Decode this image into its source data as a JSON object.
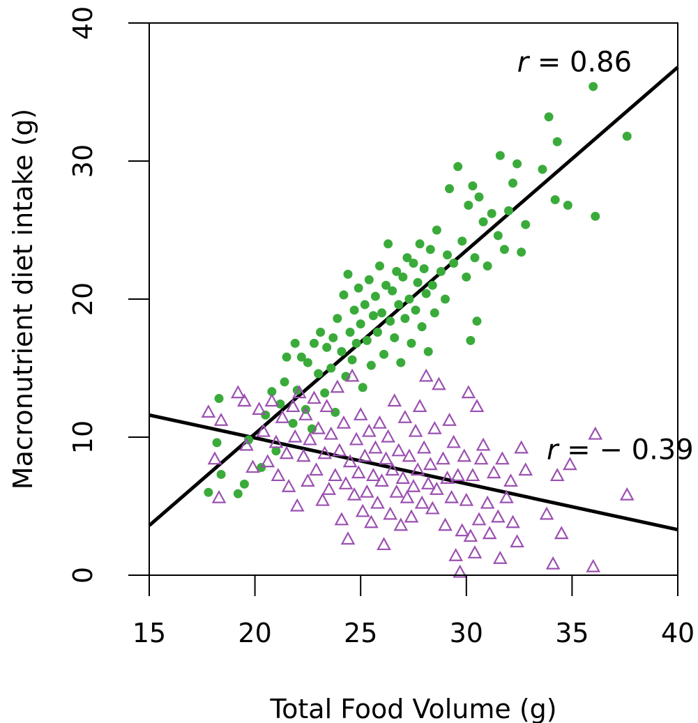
{
  "chart_data": {
    "type": "scatter",
    "title": "",
    "xlabel": "Total Food Volume (g)",
    "ylabel": "Macronutrient diet intake (g)",
    "xlim": [
      15,
      40
    ],
    "ylim": [
      0,
      40
    ],
    "xticks": [
      "15",
      "20",
      "25",
      "30",
      "35",
      "40"
    ],
    "yticks": [
      "0",
      "10",
      "20",
      "30",
      "40"
    ],
    "grid": false,
    "legend": "none",
    "colors": {
      "green": "#3aab3a",
      "purple": "#9b50b0",
      "line": "#000000"
    },
    "series": [
      {
        "marker": "filled-circle",
        "color": "#3aab3a",
        "points": [
          [
            17.8,
            6.0
          ],
          [
            18.2,
            9.6
          ],
          [
            18.4,
            7.3
          ],
          [
            18.3,
            12.8
          ],
          [
            19.2,
            5.9
          ],
          [
            19.5,
            6.6
          ],
          [
            19.7,
            9.8
          ],
          [
            20.3,
            7.8
          ],
          [
            20.5,
            11.6
          ],
          [
            20.8,
            13.3
          ],
          [
            21.0,
            9.0
          ],
          [
            21.2,
            12.4
          ],
          [
            21.4,
            14.0
          ],
          [
            21.5,
            15.8
          ],
          [
            21.8,
            11.0
          ],
          [
            21.9,
            16.8
          ],
          [
            22.0,
            13.4
          ],
          [
            22.2,
            15.8
          ],
          [
            22.4,
            12.0
          ],
          [
            22.5,
            15.4
          ],
          [
            22.7,
            10.6
          ],
          [
            22.8,
            16.8
          ],
          [
            23.0,
            14.6
          ],
          [
            23.1,
            17.6
          ],
          [
            23.3,
            13.2
          ],
          [
            23.4,
            16.5
          ],
          [
            23.6,
            15.0
          ],
          [
            23.7,
            17.2
          ],
          [
            23.8,
            11.8
          ],
          [
            23.9,
            18.6
          ],
          [
            24.1,
            16.2
          ],
          [
            24.2,
            20.3
          ],
          [
            24.3,
            14.4
          ],
          [
            24.4,
            21.8
          ],
          [
            24.5,
            17.6
          ],
          [
            24.6,
            15.6
          ],
          [
            24.7,
            19.2
          ],
          [
            24.8,
            16.8
          ],
          [
            24.9,
            20.8
          ],
          [
            25.0,
            18.2
          ],
          [
            25.1,
            13.6
          ],
          [
            25.2,
            19.6
          ],
          [
            25.3,
            17.0
          ],
          [
            25.4,
            21.4
          ],
          [
            25.5,
            15.2
          ],
          [
            25.6,
            18.8
          ],
          [
            25.7,
            20.2
          ],
          [
            25.8,
            17.6
          ],
          [
            25.9,
            22.4
          ],
          [
            26.0,
            19.0
          ],
          [
            26.1,
            16.0
          ],
          [
            26.2,
            21.0
          ],
          [
            26.3,
            24.0
          ],
          [
            26.4,
            18.4
          ],
          [
            26.5,
            20.6
          ],
          [
            26.6,
            17.2
          ],
          [
            26.7,
            22.0
          ],
          [
            26.8,
            19.6
          ],
          [
            26.9,
            15.4
          ],
          [
            27.0,
            21.6
          ],
          [
            27.1,
            18.6
          ],
          [
            27.2,
            23.0
          ],
          [
            27.3,
            20.0
          ],
          [
            27.4,
            16.8
          ],
          [
            27.5,
            22.6
          ],
          [
            27.6,
            19.2
          ],
          [
            27.7,
            21.2
          ],
          [
            27.8,
            24.0
          ],
          [
            27.9,
            18.0
          ],
          [
            28.0,
            22.2
          ],
          [
            28.1,
            20.4
          ],
          [
            28.2,
            16.2
          ],
          [
            28.3,
            23.6
          ],
          [
            28.4,
            21.0
          ],
          [
            28.5,
            19.0
          ],
          [
            28.6,
            25.0
          ],
          [
            28.8,
            22.0
          ],
          [
            29.0,
            20.0
          ],
          [
            29.1,
            23.2
          ],
          [
            29.2,
            28.0
          ],
          [
            29.4,
            22.6
          ],
          [
            29.6,
            29.6
          ],
          [
            29.8,
            24.2
          ],
          [
            30.0,
            21.6
          ],
          [
            30.1,
            26.8
          ],
          [
            30.2,
            17.0
          ],
          [
            30.3,
            28.2
          ],
          [
            30.4,
            23.0
          ],
          [
            30.5,
            18.4
          ],
          [
            30.6,
            27.4
          ],
          [
            30.8,
            25.6
          ],
          [
            31.0,
            22.4
          ],
          [
            31.2,
            26.2
          ],
          [
            31.5,
            24.6
          ],
          [
            31.6,
            30.4
          ],
          [
            31.8,
            23.6
          ],
          [
            32.0,
            26.4
          ],
          [
            32.2,
            28.4
          ],
          [
            32.4,
            29.8
          ],
          [
            32.6,
            23.4
          ],
          [
            32.8,
            25.4
          ],
          [
            33.6,
            29.4
          ],
          [
            33.9,
            33.2
          ],
          [
            34.2,
            27.2
          ],
          [
            34.3,
            31.4
          ],
          [
            34.8,
            26.8
          ],
          [
            36.0,
            35.4
          ],
          [
            36.1,
            26.0
          ],
          [
            37.6,
            31.8
          ]
        ]
      },
      {
        "marker": "open-triangle",
        "color": "#9b50b0",
        "points": [
          [
            17.8,
            11.8
          ],
          [
            18.1,
            8.4
          ],
          [
            18.3,
            5.6
          ],
          [
            18.4,
            11.2
          ],
          [
            19.2,
            13.2
          ],
          [
            19.5,
            12.6
          ],
          [
            19.6,
            9.4
          ],
          [
            19.9,
            7.8
          ],
          [
            20.2,
            12.0
          ],
          [
            20.4,
            10.4
          ],
          [
            20.6,
            8.2
          ],
          [
            20.8,
            12.6
          ],
          [
            21.0,
            9.6
          ],
          [
            21.1,
            7.2
          ],
          [
            21.3,
            11.4
          ],
          [
            21.5,
            8.8
          ],
          [
            21.6,
            6.4
          ],
          [
            21.8,
            12.2
          ],
          [
            21.9,
            10.0
          ],
          [
            22.0,
            5.0
          ],
          [
            22.1,
            13.2
          ],
          [
            22.3,
            8.6
          ],
          [
            22.4,
            11.6
          ],
          [
            22.5,
            6.8
          ],
          [
            22.6,
            9.8
          ],
          [
            22.8,
            12.8
          ],
          [
            22.9,
            7.6
          ],
          [
            23.0,
            10.6
          ],
          [
            23.2,
            5.4
          ],
          [
            23.3,
            8.8
          ],
          [
            23.4,
            12.2
          ],
          [
            23.5,
            6.2
          ],
          [
            23.6,
            10.2
          ],
          [
            23.8,
            7.2
          ],
          [
            23.9,
            13.6
          ],
          [
            24.0,
            9.0
          ],
          [
            24.1,
            4.0
          ],
          [
            24.2,
            11.0
          ],
          [
            24.3,
            6.6
          ],
          [
            24.4,
            2.6
          ],
          [
            24.5,
            8.2
          ],
          [
            24.6,
            14.4
          ],
          [
            24.7,
            5.8
          ],
          [
            24.8,
            9.8
          ],
          [
            24.9,
            7.4
          ],
          [
            25.0,
            11.6
          ],
          [
            25.1,
            4.6
          ],
          [
            25.2,
            8.6
          ],
          [
            25.3,
            6.0
          ],
          [
            25.4,
            10.4
          ],
          [
            25.5,
            3.8
          ],
          [
            25.6,
            7.2
          ],
          [
            25.7,
            9.2
          ],
          [
            25.8,
            5.2
          ],
          [
            25.9,
            11.0
          ],
          [
            26.0,
            6.8
          ],
          [
            26.1,
            2.2
          ],
          [
            26.2,
            8.4
          ],
          [
            26.3,
            10.0
          ],
          [
            26.4,
            4.4
          ],
          [
            26.5,
            7.6
          ],
          [
            26.6,
            12.6
          ],
          [
            26.7,
            6.0
          ],
          [
            26.8,
            9.0
          ],
          [
            26.9,
            3.6
          ],
          [
            27.0,
            7.0
          ],
          [
            27.1,
            11.4
          ],
          [
            27.2,
            5.6
          ],
          [
            27.3,
            8.6
          ],
          [
            27.4,
            4.2
          ],
          [
            27.5,
            6.4
          ],
          [
            27.6,
            10.4
          ],
          [
            27.7,
            7.6
          ],
          [
            27.8,
            12.2
          ],
          [
            27.9,
            5.2
          ],
          [
            28.0,
            9.2
          ],
          [
            28.1,
            14.4
          ],
          [
            28.2,
            6.6
          ],
          [
            28.3,
            8.0
          ],
          [
            28.4,
            4.8
          ],
          [
            28.5,
            10.6
          ],
          [
            28.6,
            6.2
          ],
          [
            28.7,
            13.8
          ],
          [
            28.9,
            8.4
          ],
          [
            29.0,
            3.6
          ],
          [
            29.1,
            7.0
          ],
          [
            29.2,
            11.2
          ],
          [
            29.3,
            5.6
          ],
          [
            29.4,
            9.6
          ],
          [
            29.5,
            1.4
          ],
          [
            29.6,
            7.2
          ],
          [
            29.7,
            0.2
          ],
          [
            29.8,
            3.2
          ],
          [
            29.9,
            8.6
          ],
          [
            30.0,
            5.4
          ],
          [
            30.1,
            13.2
          ],
          [
            30.2,
            2.8
          ],
          [
            30.3,
            7.2
          ],
          [
            30.4,
            1.6
          ],
          [
            30.5,
            12.2
          ],
          [
            30.6,
            4.0
          ],
          [
            30.7,
            8.4
          ],
          [
            30.8,
            9.4
          ],
          [
            31.0,
            5.2
          ],
          [
            31.1,
            3.0
          ],
          [
            31.3,
            7.4
          ],
          [
            31.5,
            4.2
          ],
          [
            31.6,
            1.2
          ],
          [
            31.7,
            8.4
          ],
          [
            31.9,
            5.6
          ],
          [
            32.1,
            6.8
          ],
          [
            32.2,
            3.8
          ],
          [
            32.4,
            2.4
          ],
          [
            32.6,
            9.2
          ],
          [
            32.8,
            7.6
          ],
          [
            33.8,
            4.4
          ],
          [
            34.1,
            0.8
          ],
          [
            34.3,
            7.2
          ],
          [
            34.5,
            3.0
          ],
          [
            34.9,
            8.0
          ],
          [
            36.1,
            10.2
          ],
          [
            36.0,
            0.6
          ],
          [
            37.6,
            5.8
          ]
        ]
      }
    ],
    "fit_lines": [
      {
        "from": [
          15,
          3.6
        ],
        "to": [
          40,
          36.8
        ]
      },
      {
        "from": [
          15,
          11.6
        ],
        "to": [
          40,
          3.3
        ]
      }
    ],
    "annotations": [
      {
        "italic": "r",
        "text": " = 0.86",
        "x": 32.4,
        "y": 36.5
      },
      {
        "italic": "r",
        "text": " = − 0.39",
        "x": 33.8,
        "y": 8.4
      }
    ]
  }
}
